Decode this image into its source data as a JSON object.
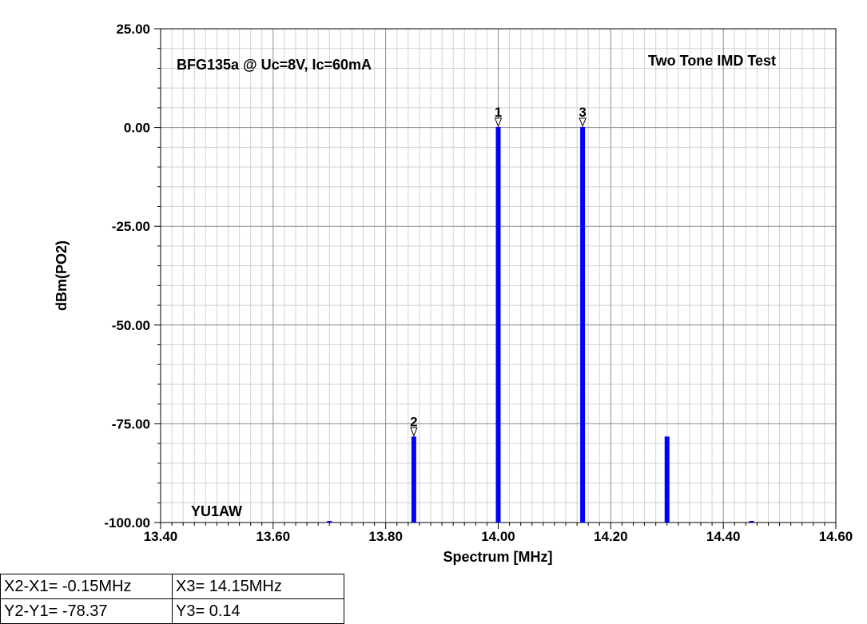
{
  "chart_data": {
    "type": "bar",
    "xlabel": "Spectrum [MHz]",
    "ylabel": "dBm(PO2)",
    "xlim": [
      13.4,
      14.6
    ],
    "ylim": [
      -100,
      25
    ],
    "x_ticks": [
      "13.40",
      "13.60",
      "13.80",
      "14.00",
      "14.20",
      "14.40",
      "14.60"
    ],
    "y_ticks": [
      "25.00",
      "0.00",
      "-25.00",
      "-50.00",
      "-75.00",
      "-100.00"
    ],
    "grid": true,
    "series_color": "#0000ff",
    "x": [
      13.7,
      13.85,
      14.0,
      14.15,
      14.3,
      14.45
    ],
    "values": [
      -100,
      -78.23,
      0.14,
      0.14,
      -78.23,
      -100
    ],
    "markers": [
      {
        "label": "1",
        "x": 14.0,
        "y": 0.14
      },
      {
        "label": "2",
        "x": 13.85,
        "y": -78.23
      },
      {
        "label": "3",
        "x": 14.15,
        "y": 0.14
      }
    ],
    "annotations": {
      "device": "BFG135a @ Uc=8V, Ic=60mA",
      "test": "Two Tone IMD Test",
      "author": "YU1AW"
    }
  },
  "readout": {
    "r1c1": "X2-X1= -0.15MHz",
    "r1c2": "X3= 14.15MHz",
    "r2c1": "Y2-Y1= -78.37",
    "r2c2": "Y3= 0.14"
  }
}
